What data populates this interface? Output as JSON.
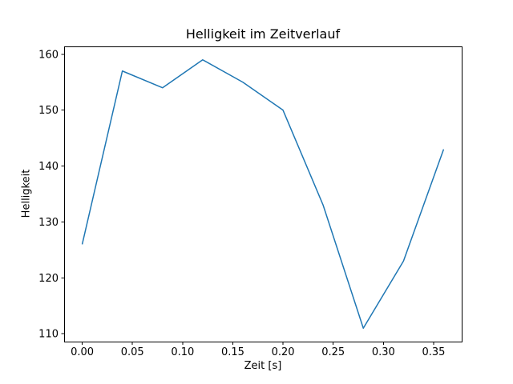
{
  "chart_data": {
    "type": "line",
    "title": "Helligkeit im Zeitverlauf",
    "xlabel": "Zeit [s]",
    "ylabel": "Helligkeit",
    "x": [
      0.0,
      0.04,
      0.08,
      0.12,
      0.16,
      0.2,
      0.24,
      0.28,
      0.32,
      0.36
    ],
    "y": [
      126,
      157,
      154,
      159,
      155,
      150,
      133,
      111,
      123,
      143
    ],
    "xlim": [
      -0.018,
      0.378
    ],
    "ylim": [
      108.6,
      161.4
    ],
    "xticks": {
      "values": [
        0.0,
        0.05,
        0.1,
        0.15,
        0.2,
        0.25,
        0.3,
        0.35
      ],
      "labels": [
        "0.00",
        "0.05",
        "0.10",
        "0.15",
        "0.20",
        "0.25",
        "0.30",
        "0.35"
      ]
    },
    "yticks": {
      "values": [
        110,
        120,
        130,
        140,
        150,
        160
      ],
      "labels": [
        "110",
        "120",
        "130",
        "140",
        "150",
        "160"
      ]
    },
    "grid": false,
    "legend": null,
    "line_color": "#1f77b4",
    "axis_color": "#000000",
    "background_color": "#ffffff"
  }
}
